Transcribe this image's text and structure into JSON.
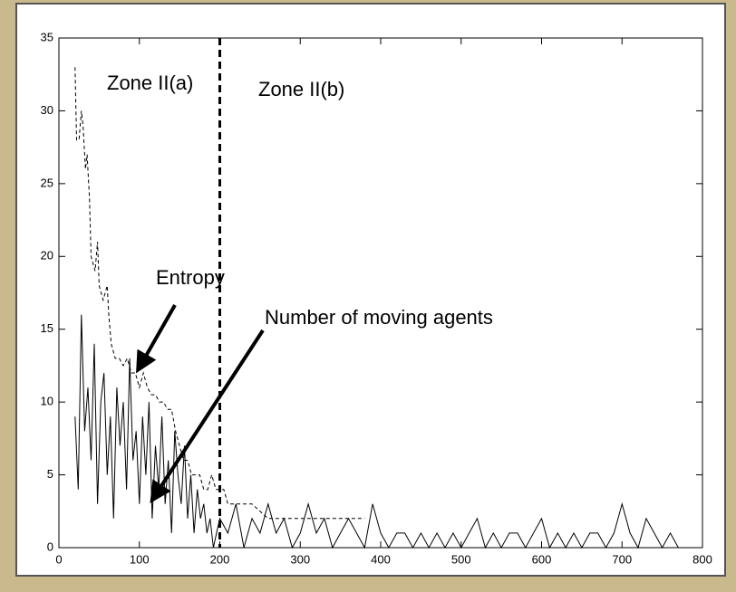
{
  "chart_data": {
    "type": "line",
    "annotations": {
      "zone_a": "Zone II(a)",
      "zone_b": "Zone II(b)",
      "entropy": "Entropy",
      "agents": "Number of moving agents"
    },
    "vline": 200,
    "xlim": [
      0,
      800
    ],
    "xticks": [
      0,
      100,
      200,
      300,
      400,
      500,
      600,
      700,
      800
    ],
    "ylim": [
      0,
      35
    ],
    "yticks": [
      0,
      5,
      10,
      15,
      20,
      25,
      30,
      35
    ],
    "series": [
      {
        "color": "#000000",
        "dash": true,
        "x": [
          20,
          22,
          25,
          28,
          30,
          33,
          35,
          38,
          40,
          45,
          48,
          50,
          55,
          60,
          62,
          65,
          70,
          75,
          80,
          85,
          90,
          95,
          100,
          105,
          110,
          115,
          120,
          125,
          130,
          135,
          140,
          145,
          150,
          155,
          160,
          165,
          170,
          175,
          180,
          185,
          190,
          195,
          200,
          205,
          210,
          215,
          220,
          230,
          240,
          250,
          260,
          280,
          300,
          320,
          340,
          360,
          380
        ],
        "values": [
          33,
          28,
          28,
          30,
          29,
          26,
          27,
          24,
          20,
          19,
          21,
          18,
          17,
          18,
          16,
          14,
          13,
          13,
          12.5,
          13,
          12,
          12,
          11,
          12,
          11,
          10.5,
          10.5,
          10,
          10,
          9.5,
          9.5,
          8,
          7,
          6,
          6,
          5,
          5,
          5,
          4,
          4,
          5,
          4,
          4,
          4,
          3,
          3,
          3,
          3,
          3,
          2.5,
          2,
          2,
          2,
          2,
          2,
          2,
          2
        ]
      },
      {
        "color": "#000000",
        "dash": false,
        "x": [
          20,
          24,
          28,
          32,
          36,
          40,
          44,
          48,
          52,
          56,
          60,
          64,
          68,
          72,
          76,
          80,
          84,
          88,
          92,
          96,
          100,
          104,
          108,
          112,
          116,
          120,
          124,
          128,
          132,
          136,
          140,
          144,
          148,
          152,
          156,
          160,
          164,
          168,
          172,
          176,
          180,
          184,
          188,
          192,
          196,
          200,
          210,
          220,
          230,
          240,
          250,
          260,
          270,
          280,
          290,
          300,
          310,
          320,
          330,
          340,
          350,
          360,
          370,
          380,
          390,
          400,
          410,
          420,
          430,
          440,
          450,
          460,
          470,
          480,
          490,
          500,
          510,
          520,
          530,
          540,
          550,
          560,
          570,
          580,
          590,
          600,
          610,
          620,
          630,
          640,
          650,
          660,
          670,
          680,
          690,
          700,
          710,
          720,
          730,
          740,
          750,
          760,
          770
        ],
        "values": [
          9,
          4,
          16,
          8,
          11,
          6,
          14,
          3,
          10,
          12,
          5,
          9,
          2,
          11,
          7,
          10,
          4,
          13,
          6,
          8,
          3,
          9,
          5,
          10,
          2,
          7,
          4,
          9,
          3,
          6,
          1,
          8,
          5,
          3,
          7,
          2,
          5,
          1,
          4,
          2,
          3,
          1,
          2,
          0,
          1,
          2,
          1,
          3,
          0,
          2,
          1,
          3,
          1,
          2,
          0,
          1,
          3,
          1,
          2,
          0,
          1,
          2,
          1,
          0,
          3,
          1,
          0,
          1,
          1,
          0,
          1,
          0,
          1,
          0,
          1,
          0,
          1,
          2,
          0,
          1,
          0,
          1,
          1,
          0,
          1,
          2,
          0,
          1,
          0,
          1,
          0,
          1,
          1,
          0,
          1,
          3,
          1,
          0,
          2,
          1,
          0,
          1,
          0
        ]
      }
    ]
  }
}
